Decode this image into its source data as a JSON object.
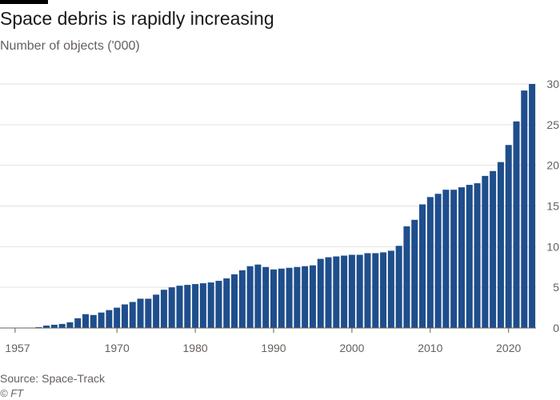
{
  "header": {
    "title": "Space debris is rapidly increasing",
    "subtitle": "Number of objects ('000)"
  },
  "footer": {
    "source": "Source: Space-Track",
    "credit": "© FT"
  },
  "colors": {
    "bar": "#1f4e8c",
    "grid": "#e6e2df",
    "axis": "#66605c",
    "accent": "#000000"
  },
  "chart_data": {
    "type": "bar",
    "title": "Space debris is rapidly increasing",
    "ylabel": "Number of objects ('000)",
    "xlabel": "",
    "ylim": [
      0,
      30
    ],
    "y_ticks": [
      0,
      5,
      10,
      15,
      20,
      25,
      30
    ],
    "x_ticks": [
      "1957",
      "1970",
      "1980",
      "1990",
      "2000",
      "2010",
      "2020"
    ],
    "grid": "horizontal",
    "y_axis_side": "right",
    "categories": [
      1957,
      1958,
      1959,
      1960,
      1961,
      1962,
      1963,
      1964,
      1965,
      1966,
      1967,
      1968,
      1969,
      1970,
      1971,
      1972,
      1973,
      1974,
      1975,
      1976,
      1977,
      1978,
      1979,
      1980,
      1981,
      1982,
      1983,
      1984,
      1985,
      1986,
      1987,
      1988,
      1989,
      1990,
      1991,
      1992,
      1993,
      1994,
      1995,
      1996,
      1997,
      1998,
      1999,
      2000,
      2001,
      2002,
      2003,
      2004,
      2005,
      2006,
      2007,
      2008,
      2009,
      2010,
      2011,
      2012,
      2013,
      2014,
      2015,
      2016,
      2017,
      2018,
      2019,
      2020,
      2021,
      2022,
      2023
    ],
    "values": [
      0,
      0.02,
      0.05,
      0.1,
      0.3,
      0.4,
      0.5,
      0.7,
      1.2,
      1.7,
      1.6,
      1.9,
      2.2,
      2.5,
      2.9,
      3.2,
      3.6,
      3.6,
      4.1,
      4.7,
      5.0,
      5.2,
      5.3,
      5.4,
      5.5,
      5.6,
      5.8,
      6.1,
      6.6,
      7.1,
      7.6,
      7.8,
      7.5,
      7.2,
      7.3,
      7.4,
      7.5,
      7.6,
      7.7,
      8.5,
      8.7,
      8.8,
      8.9,
      9.0,
      9.0,
      9.2,
      9.2,
      9.3,
      9.5,
      10.1,
      12.5,
      13.3,
      15.2,
      16.1,
      16.5,
      17.0,
      17.0,
      17.3,
      17.6,
      17.8,
      18.7,
      19.3,
      20.4,
      22.5,
      25.4,
      29.2,
      30.0
    ]
  }
}
